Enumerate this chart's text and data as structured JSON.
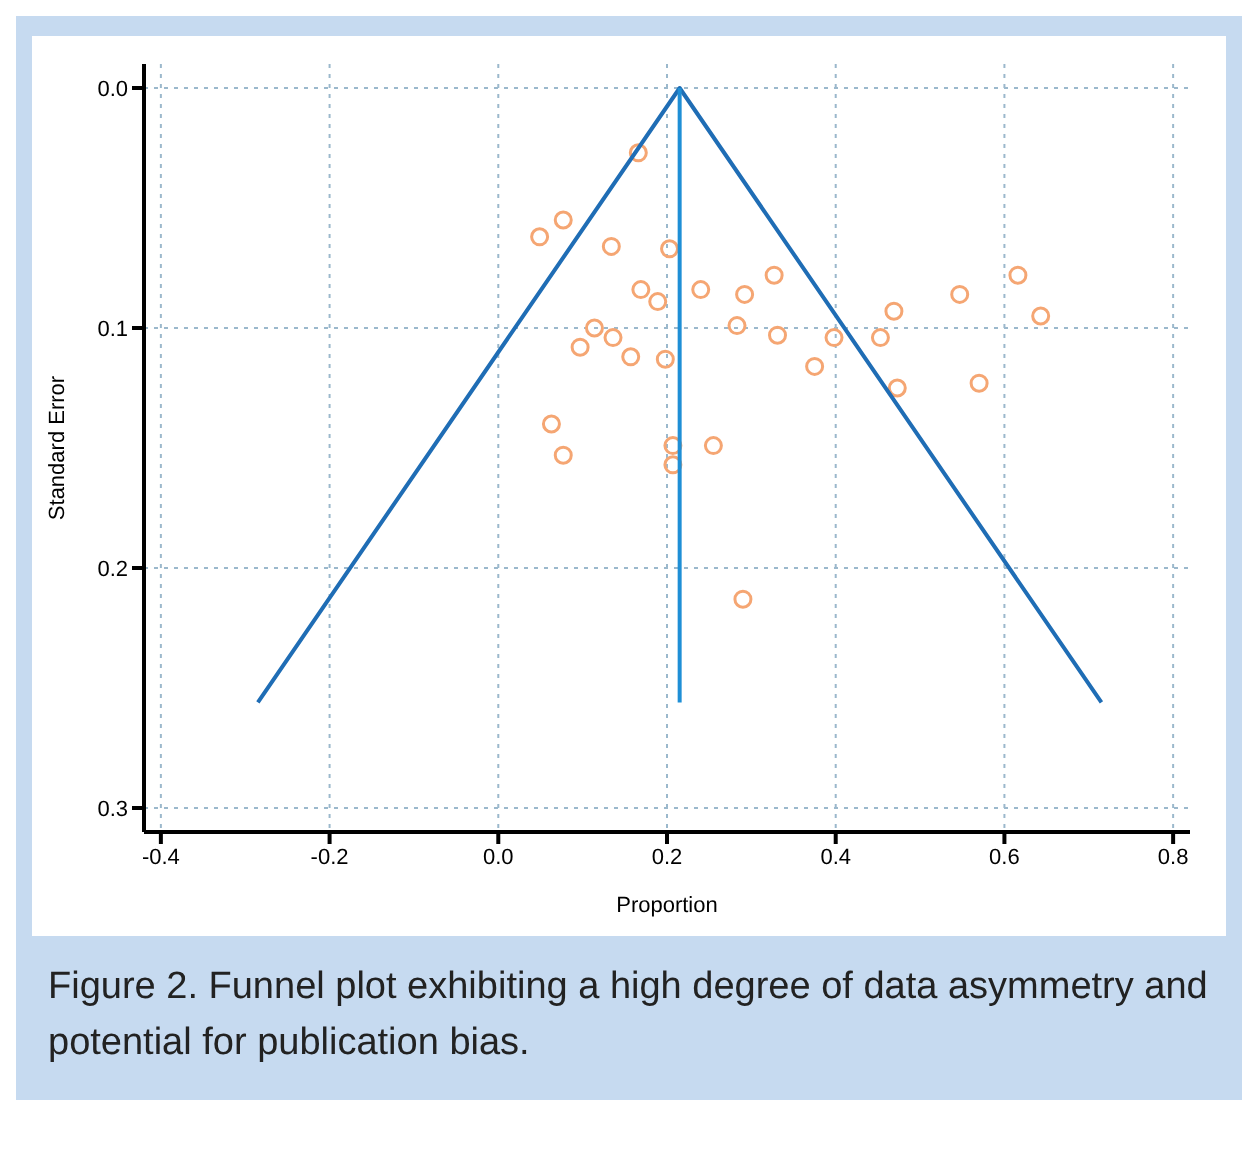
{
  "chart_data": {
    "type": "scatter",
    "xlabel": "Proportion",
    "ylabel": "Standard Error",
    "xlim": [
      -0.42,
      0.82
    ],
    "xticks": [
      -0.4,
      -0.2,
      {
        "value": 0,
        "label": "0.0"
      },
      0.2,
      0.4,
      0.6,
      0.8
    ],
    "ylim": [
      0.31,
      -0.01
    ],
    "yticks": [
      {
        "value": 0,
        "label": "0.0"
      },
      0.1,
      0.2,
      0.3
    ],
    "grid": true,
    "marker": "circle",
    "series": [
      {
        "color": "#f5a673",
        "x": [
          0.166,
          0.049,
          0.077,
          0.134,
          0.203,
          0.169,
          0.189,
          0.24,
          0.327,
          0.292,
          0.283,
          0.398,
          0.331,
          0.375,
          0.469,
          0.453,
          0.547,
          0.616,
          0.643,
          0.473,
          0.57,
          0.114,
          0.136,
          0.097,
          0.157,
          0.198,
          0.063,
          0.077,
          0.207,
          0.207,
          0.255,
          0.29
        ],
        "values": [
          0.027,
          0.062,
          0.055,
          0.066,
          0.067,
          0.084,
          0.089,
          0.084,
          0.078,
          0.086,
          0.099,
          0.104,
          0.103,
          0.116,
          0.093,
          0.104,
          0.086,
          0.078,
          0.095,
          0.125,
          0.123,
          0.1,
          0.104,
          0.108,
          0.112,
          0.113,
          0.14,
          0.153,
          0.149,
          0.157,
          0.149,
          0.213
        ]
      },
      {
        "type": "line",
        "color": "#1f6db5",
        "marker": "none",
        "x": [
          -0.285,
          0.215,
          0.715
        ],
        "values": [
          0.256,
          0,
          0.256
        ]
      },
      {
        "type": "line",
        "color": "#1f8fd6",
        "marker": "none",
        "x": [
          0.215,
          0.215
        ],
        "values": [
          0,
          0.256
        ]
      }
    ],
    "annotations": [
      "Figure 2.  Funnel plot exhibiting a high degree of data asymmetry and potential for publication bias."
    ]
  }
}
